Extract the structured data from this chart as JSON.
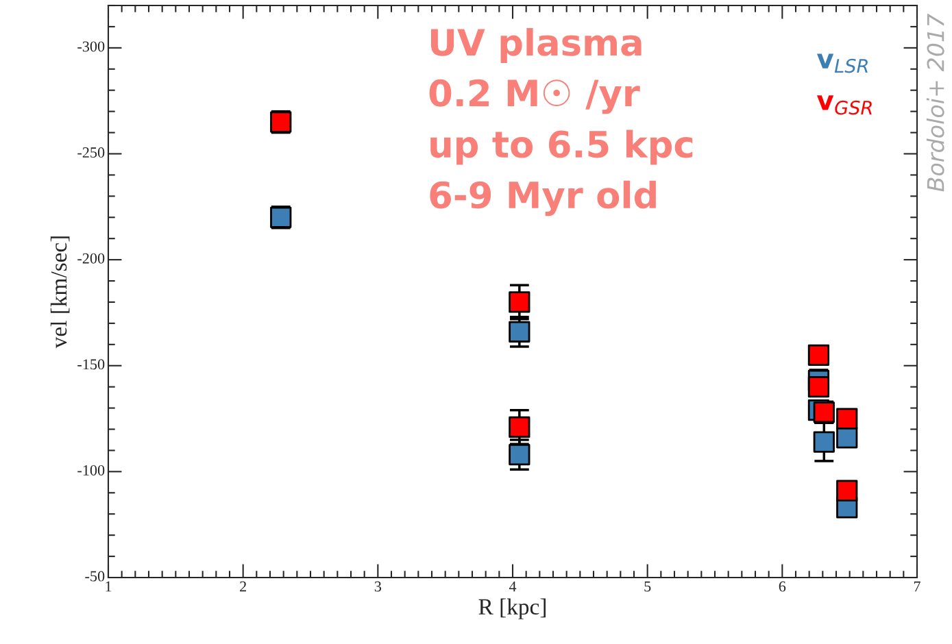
{
  "chart_data": {
    "type": "scatter",
    "xlabel": "R [kpc]",
    "ylabel": "vel [km/sec]",
    "xlim": [
      1,
      7
    ],
    "xticks": [
      1,
      2,
      3,
      4,
      5,
      6,
      7
    ],
    "ylim": [
      -50,
      -320
    ],
    "yticks": [
      -50,
      -100,
      -150,
      -200,
      -250,
      -300
    ],
    "marker": "square",
    "grid": false,
    "legend": "top right",
    "series": [
      {
        "name": "v$_{LSR}$",
        "color": "#3d7fb5",
        "x": [
          2.28,
          4.05,
          4.05,
          6.27,
          6.27,
          6.31,
          6.48,
          6.48
        ],
        "values": [
          -220,
          -166,
          -108,
          -143,
          -129,
          -114,
          -116,
          -83
        ],
        "errors": [
          5,
          7,
          7,
          5,
          null,
          9,
          null,
          null
        ]
      },
      {
        "name": "v$_{GSR}$",
        "color": "#ff0000",
        "x": [
          2.28,
          4.05,
          4.05,
          6.27,
          6.27,
          6.31,
          6.48,
          6.48
        ],
        "values": [
          -265,
          -180,
          -121,
          -155,
          -140,
          -128,
          -125,
          -91
        ],
        "errors": [
          5,
          8,
          8,
          null,
          null,
          5,
          null,
          null
        ]
      }
    ],
    "annotations": [
      "UV plasma",
      "0.2 M☉ /yr",
      "up to 6.5 kpc",
      "6-9 Myr old",
      "Bordoloi+ 2017"
    ]
  }
}
